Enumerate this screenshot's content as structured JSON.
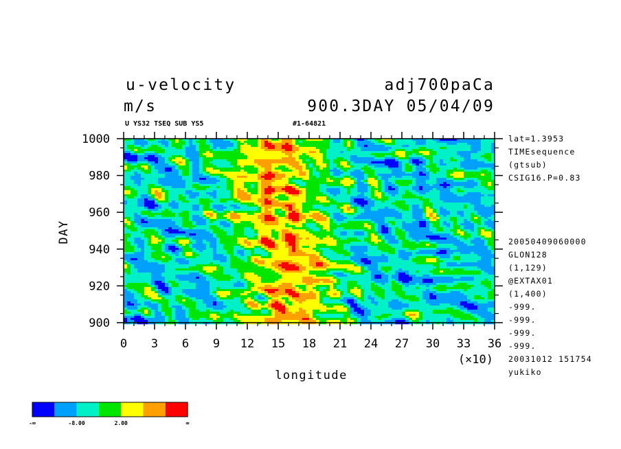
{
  "header": {
    "title_left": "u-velocity",
    "units": "m/s",
    "title_right": "adj700paCa",
    "subtitle_right": "900.3DAY 05/04/09",
    "small_left": "U YS32 TSEQ SUB YS5",
    "small_mid": "#1-64821"
  },
  "info": {
    "lines_top": [
      "lat=1.3953",
      "TIMEsequence",
      "(gtsub)",
      "CSIG16.P=0.83"
    ],
    "lines_bottom": [
      "20050409060000",
      "GLON128",
      "(1,129)",
      "@EXTAX01",
      "(1,400)",
      "-999.",
      "-999.",
      "-999.",
      "-999.",
      "20031012 151754",
      "yukiko"
    ]
  },
  "chart_data": {
    "type": "heatmap",
    "title": "u-velocity",
    "units": "m/s",
    "xlabel": "longitude",
    "x_multiplier": "(×10)",
    "ylabel": "DAY",
    "xlim": [
      0,
      360
    ],
    "ylim": [
      900,
      1000
    ],
    "x_ticks": [
      0,
      3,
      6,
      9,
      12,
      15,
      18,
      21,
      24,
      27,
      30,
      33,
      36
    ],
    "y_ticks": [
      900,
      920,
      940,
      960,
      980,
      1000
    ],
    "colorbar": {
      "colors": [
        "#0000ff",
        "#00a0ff",
        "#00f0c8",
        "#00e600",
        "#ffff00",
        "#ffa000",
        "#ff0000"
      ],
      "labels": [
        "-∞",
        "-8.00",
        "2.00",
        "∞"
      ]
    },
    "description_values": {
      "note": "westerly (positive, red) core centered near longitude 130-190, strongest at days 905-990; easterly (negative, blue) bands tilting westward at longitudes 0-80 and 230-360"
    }
  }
}
